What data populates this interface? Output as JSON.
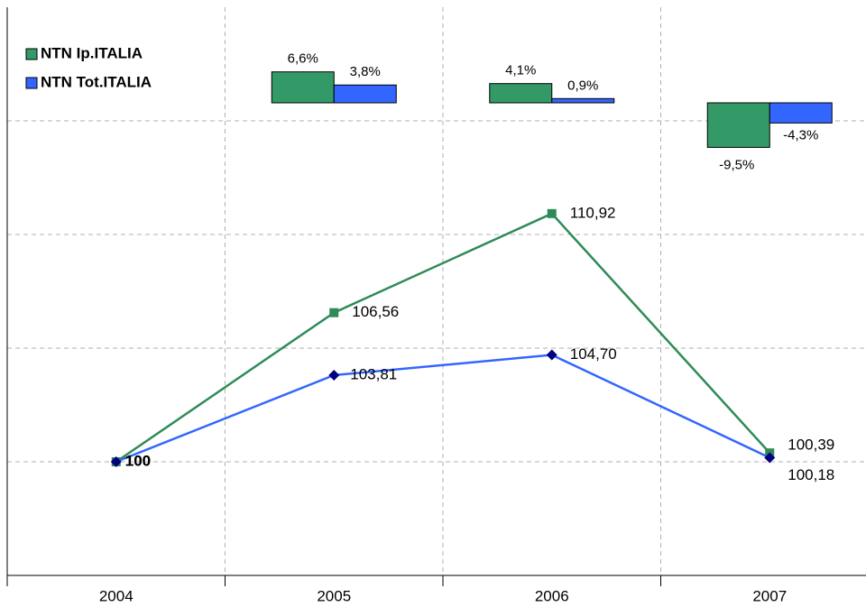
{
  "chart_data": {
    "type": "line",
    "categories": [
      "2004",
      "2005",
      "2006",
      "2007"
    ],
    "ylim": [
      95,
      120
    ],
    "yticks": [
      95,
      100,
      105,
      110,
      115
    ],
    "grid": true,
    "legend": "upper left",
    "bar_ylim": [
      -10,
      20
    ],
    "series": [
      {
        "name": "NTN Ip.ITALIA",
        "color": "#2e8b57",
        "marker_color": "#2e8b57",
        "bar_color": "#339966",
        "values": [
          100,
          106.56,
          110.92,
          100.39
        ],
        "value_labels": [
          "100",
          "106,56",
          "110,92",
          "100,39"
        ],
        "bar_values": [
          null,
          6.6,
          4.1,
          -9.5
        ],
        "bar_value_labels": [
          null,
          "6,6%",
          "4,1%",
          "-9,5%"
        ]
      },
      {
        "name": "NTN Tot.ITALIA",
        "color": "#3366ff",
        "marker_color": "#000080",
        "bar_color": "#3366ff",
        "values": [
          100,
          103.81,
          104.7,
          100.18
        ],
        "value_labels": [
          "100",
          "103,81",
          "104,70",
          "100,18"
        ],
        "bar_values": [
          null,
          3.8,
          0.9,
          -4.3
        ],
        "bar_value_labels": [
          null,
          "3,8%",
          "0,9%",
          "-4,3%"
        ]
      }
    ]
  }
}
